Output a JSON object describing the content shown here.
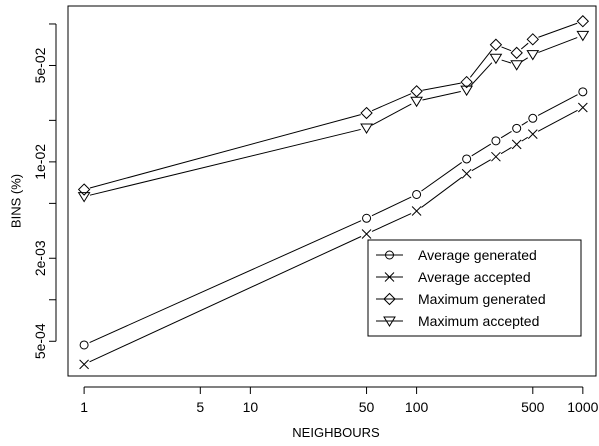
{
  "chart_data": {
    "type": "line",
    "xlabel": "NEIGHBOURS",
    "ylabel": "BINS (%)",
    "x_scale": "log",
    "y_scale": "log",
    "xlim": [
      0.8,
      1200
    ],
    "ylim": [
      0.00028,
      0.135
    ],
    "x_ticks": [
      1,
      5,
      10,
      50,
      100,
      500,
      1000
    ],
    "x_tick_labels": [
      "1",
      "5",
      "10",
      "50",
      "100",
      "500",
      "1000"
    ],
    "y_ticks": [
      0.0005,
      0.002,
      0.01,
      0.05
    ],
    "y_tick_labels": [
      "5e-04",
      "2e-03",
      "1e-02",
      "5e-02"
    ],
    "y_minor_ticks": [
      0.001,
      0.005,
      0.02,
      0.1
    ],
    "legend_position": "bottom-right",
    "grid": false,
    "series": [
      {
        "name": "Average generated",
        "marker": "circle",
        "x": [
          1,
          50,
          100,
          200,
          300,
          400,
          500,
          1000
        ],
        "y": [
          0.00047,
          0.0039,
          0.0058,
          0.0105,
          0.0142,
          0.0175,
          0.0207,
          0.0322
        ]
      },
      {
        "name": "Average accepted",
        "marker": "x",
        "x": [
          1,
          50,
          100,
          200,
          300,
          400,
          500,
          1000
        ],
        "y": [
          0.00034,
          0.003,
          0.0044,
          0.0082,
          0.0109,
          0.0134,
          0.0159,
          0.0248
        ]
      },
      {
        "name": "Maximum generated",
        "marker": "diamond",
        "x": [
          1,
          50,
          100,
          200,
          300,
          400,
          500,
          1000
        ],
        "y": [
          0.0063,
          0.0226,
          0.0325,
          0.0379,
          0.0707,
          0.0617,
          0.0774,
          0.1047
        ]
      },
      {
        "name": "Maximum accepted",
        "marker": "triangle-down",
        "x": [
          1,
          50,
          100,
          200,
          300,
          400,
          500,
          1000
        ],
        "y": [
          0.0056,
          0.0176,
          0.0275,
          0.0331,
          0.0564,
          0.0506,
          0.06,
          0.0826
        ]
      }
    ]
  }
}
